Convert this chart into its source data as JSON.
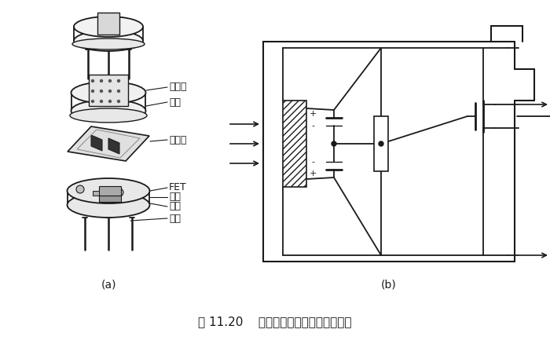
{
  "title": "图 11.20    热释电人体红外传感器的结构",
  "label_a": "(a)",
  "label_b": "(b)",
  "labels": {
    "filter": "滤光片",
    "cap": "管帽",
    "sensitive": "敏感元",
    "fet": "FET",
    "socket": "管座",
    "resistor": "高阳",
    "lead": "引线"
  },
  "bg_color": "#ffffff",
  "line_color": "#1a1a1a"
}
